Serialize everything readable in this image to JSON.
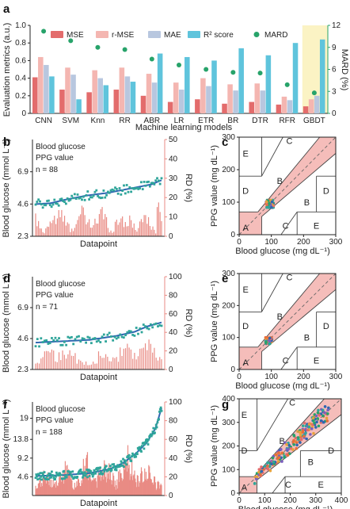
{
  "colors": {
    "mse": "#e36c6c",
    "rmse": "#f4b6b1",
    "mae": "#b8c7df",
    "r2": "#5fc4dc",
    "mard": "#27a36a",
    "glucose": "#2f67b1",
    "ppg": "#2fa59a",
    "rd": "#e98b84",
    "highlight": "#fbf3c4",
    "zone_fill": "#f3b2ae",
    "extra1": "#e7a23b",
    "extra2": "#7a5fbf",
    "extra3": "#e86f3a"
  },
  "panel_a": {
    "label": "a",
    "legend": [
      "MSE",
      "r-MSE",
      "MAE",
      "R² score",
      "MARD"
    ],
    "ylabel": "Evaluation metrics (a.u.)",
    "y2label": "MARD (%)",
    "xlabel": "Machine learning models",
    "chart_data": {
      "type": "bar",
      "categories": [
        "CNN",
        "SVM",
        "Knn",
        "RR",
        "ABR",
        "LR",
        "ETR",
        "BR",
        "DTR",
        "RFR",
        "GBDT"
      ],
      "series": [
        {
          "name": "MSE",
          "values": [
            0.41,
            0.27,
            0.24,
            0.27,
            0.2,
            0.13,
            0.16,
            0.11,
            0.13,
            0.1,
            0.08
          ]
        },
        {
          "name": "r-MSE",
          "values": [
            0.64,
            0.52,
            0.49,
            0.52,
            0.45,
            0.35,
            0.4,
            0.33,
            0.34,
            0.19,
            0.16
          ]
        },
        {
          "name": "MAE",
          "values": [
            0.55,
            0.44,
            0.4,
            0.42,
            0.35,
            0.27,
            0.31,
            0.26,
            0.26,
            0.15,
            0.2
          ]
        },
        {
          "name": "R² score",
          "values": [
            0.42,
            0.16,
            0.32,
            0.36,
            0.68,
            0.64,
            0.6,
            0.74,
            0.66,
            0.8,
            0.84
          ]
        },
        {
          "name": "MARD",
          "axis": "right",
          "values": [
            11.2,
            9.9,
            9.0,
            8.7,
            7.4,
            6.6,
            6.0,
            5.6,
            5.5,
            3.9,
            2.8
          ]
        }
      ],
      "ylim": [
        0,
        1.0
      ],
      "yticks": [
        "0",
        "0.2",
        "0.4",
        "0.6",
        "0.8",
        "1.0"
      ],
      "y2lim": [
        0,
        12
      ],
      "y2ticks": [
        "0",
        "3",
        "6",
        "9",
        "12"
      ],
      "highlight_category": "GBDT"
    }
  },
  "time_panels": [
    {
      "label": "b",
      "legend": [
        "Blood glucose",
        "PPG value"
      ],
      "n_text": "n = 88",
      "ylabel": "Blood glucose (mmol L⁻¹)",
      "y2label": "RD (%)",
      "xlabel": "Datapoint",
      "chart_data": {
        "type": "line",
        "ylim": [
          2.3,
          9.2
        ],
        "yticks": [
          "2.3",
          "4.6",
          "6.9"
        ],
        "y2lim": [
          0,
          50
        ],
        "y2ticks": [
          "0",
          "10",
          "20",
          "30",
          "40",
          "50"
        ],
        "n_points": 88,
        "glucose_points": [
          [
            0,
            4.6
          ],
          [
            10,
            4.65
          ],
          [
            20,
            4.9
          ],
          [
            35,
            5.2
          ],
          [
            50,
            5.4
          ],
          [
            65,
            5.7
          ],
          [
            80,
            6.0
          ],
          [
            87,
            6.3
          ]
        ],
        "rd_points": [
          [
            0,
            10
          ],
          [
            5,
            2
          ],
          [
            10,
            9
          ],
          [
            18,
            12
          ],
          [
            24,
            4
          ],
          [
            32,
            13
          ],
          [
            38,
            6
          ],
          [
            46,
            14
          ],
          [
            52,
            3
          ],
          [
            58,
            11
          ],
          [
            64,
            9
          ],
          [
            70,
            5
          ],
          [
            76,
            13
          ],
          [
            83,
            2
          ],
          [
            85,
            22
          ],
          [
            87,
            16
          ]
        ]
      }
    },
    {
      "label": "d",
      "legend": [
        "Blood glucose",
        "PPG value"
      ],
      "n_text": "n = 71",
      "ylabel": "Blood glucose (mmol L⁻¹)",
      "y2label": "RD (%)",
      "xlabel": "Datapoint",
      "chart_data": {
        "type": "line",
        "ylim": [
          2.3,
          9.2
        ],
        "yticks": [
          "2.3",
          "4.6",
          "6.9"
        ],
        "y2lim": [
          0,
          100
        ],
        "y2ticks": [
          "0",
          "20",
          "40",
          "60",
          "80",
          "100"
        ],
        "n_points": 71,
        "glucose_points": [
          [
            0,
            4.3
          ],
          [
            15,
            4.4
          ],
          [
            30,
            4.5
          ],
          [
            45,
            4.8
          ],
          [
            55,
            5.1
          ],
          [
            62,
            5.5
          ],
          [
            70,
            5.8
          ]
        ],
        "rd_points": [
          [
            0,
            8
          ],
          [
            6,
            22
          ],
          [
            12,
            14
          ],
          [
            20,
            19
          ],
          [
            28,
            7
          ],
          [
            35,
            17
          ],
          [
            42,
            10
          ],
          [
            50,
            24
          ],
          [
            56,
            12
          ],
          [
            62,
            30
          ],
          [
            66,
            18
          ],
          [
            70,
            9
          ]
        ]
      }
    },
    {
      "label": "f",
      "legend": [
        "Blood glucose",
        "PPG value"
      ],
      "n_text": "n = 188",
      "ylabel": "Blood glucose (mmol L⁻¹)",
      "y2label": "RD (%)",
      "xlabel": "Datapoint",
      "chart_data": {
        "type": "line",
        "ylim": [
          0,
          23
        ],
        "yticks": [
          "4.6",
          "9.2",
          "13.8",
          "19"
        ],
        "y2lim": [
          0,
          100
        ],
        "y2ticks": [
          "0",
          "20",
          "40",
          "60",
          "80",
          "100"
        ],
        "n_points": 188,
        "glucose_points": [
          [
            0,
            4.8
          ],
          [
            40,
            5.0
          ],
          [
            80,
            5.5
          ],
          [
            110,
            6.5
          ],
          [
            130,
            8.0
          ],
          [
            150,
            10.5
          ],
          [
            165,
            13.0
          ],
          [
            178,
            16.5
          ],
          [
            187,
            21.5
          ]
        ],
        "rd_points": [
          [
            0,
            8
          ],
          [
            15,
            25
          ],
          [
            30,
            12
          ],
          [
            45,
            30
          ],
          [
            60,
            10
          ],
          [
            75,
            40
          ],
          [
            90,
            18
          ],
          [
            105,
            35
          ],
          [
            120,
            14
          ],
          [
            135,
            45
          ],
          [
            150,
            20
          ],
          [
            165,
            30
          ],
          [
            178,
            15
          ],
          [
            187,
            10
          ]
        ]
      }
    }
  ],
  "ceg_panels": [
    {
      "label": "c",
      "ylabel": "PPG value (mg dL⁻¹)",
      "xlabel": "Blood glucose (mg dL⁻¹)",
      "zones": [
        "A",
        "B",
        "C",
        "D",
        "E",
        "B",
        "C",
        "D",
        "E"
      ],
      "chart_data": {
        "type": "scatter",
        "xlim": [
          0,
          300
        ],
        "ylim": [
          0,
          300
        ],
        "xticks": [
          "0",
          "100",
          "200",
          "300"
        ],
        "yticks": [
          "0",
          "100",
          "200",
          "300"
        ],
        "cluster_center": [
          95,
          95
        ],
        "cluster_spread": 12,
        "n_points": 88
      }
    },
    {
      "label": "e",
      "ylabel": "PPG value (mg dL⁻¹)",
      "xlabel": "Blood glucose (mg dL⁻¹)",
      "zones": [
        "A",
        "B",
        "C",
        "D",
        "E",
        "B",
        "C",
        "D",
        "E"
      ],
      "chart_data": {
        "type": "scatter",
        "xlim": [
          0,
          300
        ],
        "ylim": [
          0,
          300
        ],
        "xticks": [
          "0",
          "100",
          "200",
          "300"
        ],
        "yticks": [
          "0",
          "100",
          "200",
          "300"
        ],
        "cluster_center": [
          92,
          90
        ],
        "cluster_spread": 10,
        "n_points": 71
      }
    },
    {
      "label": "g",
      "ylabel": "PPG value (mg dL⁻¹)",
      "xlabel": "Blood glucose (mg dL⁻¹)",
      "zones": [
        "A",
        "B",
        "C",
        "D",
        "E",
        "B",
        "C",
        "D",
        "E"
      ],
      "chart_data": {
        "type": "scatter",
        "xlim": [
          0,
          400
        ],
        "ylim": [
          0,
          400
        ],
        "xticks": [
          "0",
          "100",
          "200",
          "300",
          "400"
        ],
        "yticks": [
          "0",
          "100",
          "200",
          "300",
          "400"
        ],
        "cluster_center": [
          160,
          160
        ],
        "cluster_spread": 80,
        "n_points": 188
      }
    }
  ]
}
